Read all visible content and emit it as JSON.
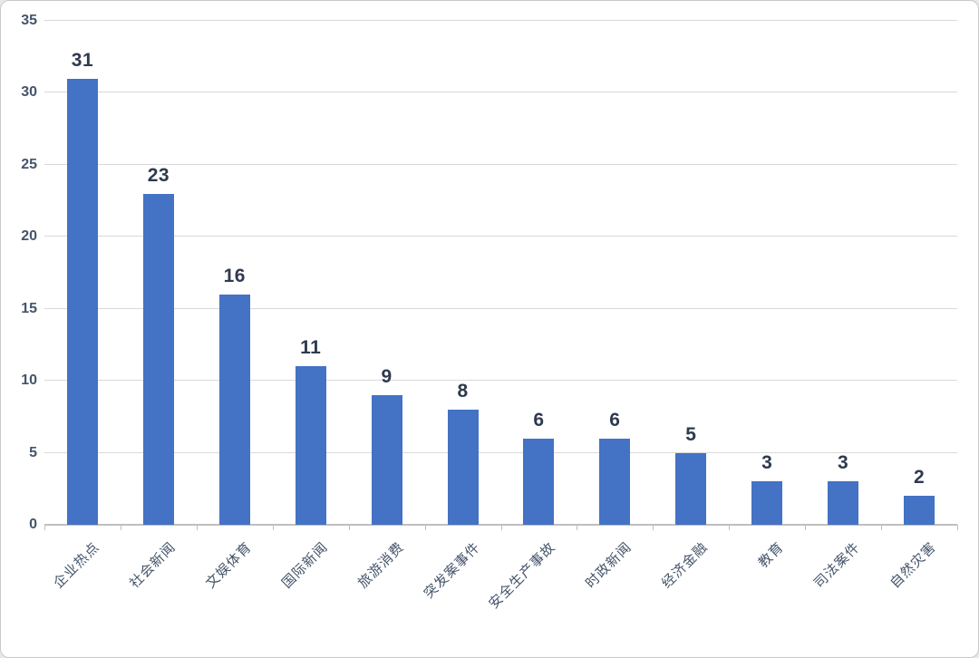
{
  "chart_data": {
    "type": "bar",
    "title": "",
    "xlabel": "",
    "ylabel": "",
    "categories": [
      "企业热点",
      "社会新闻",
      "文娱体育",
      "国际新闻",
      "旅游消费",
      "突发案事件",
      "安全生产事故",
      "时政新闻",
      "经济金融",
      "教育",
      "司法案件",
      "自然灾害"
    ],
    "values": [
      31,
      23,
      16,
      11,
      9,
      8,
      6,
      6,
      5,
      3,
      3,
      2
    ],
    "data_labels": [
      "31",
      "23",
      "16",
      "11",
      "9",
      "8",
      "6",
      "6",
      "5",
      "3",
      "3",
      "2"
    ],
    "ylim": [
      0,
      35
    ],
    "yticks": [
      0,
      5,
      10,
      15,
      20,
      25,
      30,
      35
    ],
    "grid": true,
    "legend": false,
    "bar_color": "#4472c4",
    "gridline_color": "#d9d9d9",
    "axis_color": "#bfbfbf",
    "y_tick_label_color": "#44546a",
    "x_tick_label_color": "#44546a",
    "data_label_color": "#2e3a4e",
    "background_color": "#ffffff",
    "border_color": "#c9c9c9"
  }
}
